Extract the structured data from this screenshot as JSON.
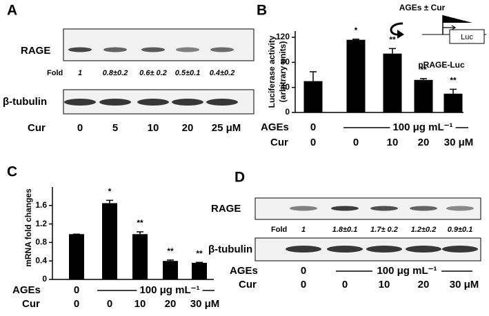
{
  "blots": [
    {
      "panel": "A",
      "row1": "RAGE",
      "fold_label": "Fold",
      "folds": [
        "1",
        "0.8±0.2",
        "0.6± 0.2",
        "0.5±0.1",
        "0.4±0.2"
      ],
      "row2": "β-tubulin",
      "lane_label": "Cur",
      "lanes": [
        "0",
        "5",
        "10",
        "20",
        "25 μM"
      ]
    },
    {
      "panel": "D",
      "row1": "RAGE",
      "fold_label": "Fold",
      "folds": [
        "1",
        "1.8±0.1",
        "1.7± 0.2",
        "1.2±0.2",
        "0.9±0.1"
      ],
      "row2": "β-tubulin",
      "treat_label": "AGEs",
      "treat_first": "0",
      "treat_span": "100 μg mL⁻¹",
      "lane_label": "Cur",
      "lanes": [
        "0",
        "0",
        "10",
        "20",
        "30 μM"
      ]
    }
  ],
  "chart_data": [
    {
      "type": "bar",
      "panel": "B",
      "y_label": [
        "Luciferase activity",
        "(arbitrary units)"
      ],
      "categories": [
        "0",
        "0",
        "10",
        "20",
        "30 μM"
      ],
      "category_label": "Cur",
      "values": [
        50,
        116,
        94,
        52,
        30
      ],
      "errors": [
        15,
        1,
        8,
        2,
        7
      ],
      "significance": [
        null,
        "*",
        "**",
        "**",
        "**"
      ],
      "color": "#000000",
      "ylim": [
        0,
        130
      ],
      "yticks": [
        0,
        40,
        80,
        120
      ],
      "treatment": {
        "label": "AGEs",
        "first": "0",
        "span": "100 μg mL⁻¹"
      },
      "inset": {
        "top": "AGEs ± Cur",
        "box": "Luc",
        "bottom": "pRAGE-Luc"
      }
    },
    {
      "type": "bar",
      "panel": "C",
      "y_label": [
        "mRNA  fold changes"
      ],
      "categories": [
        "0",
        "0",
        "10",
        "20",
        "30 μM"
      ],
      "category_label": "Cur",
      "values": [
        0.98,
        1.65,
        0.98,
        0.4,
        0.36
      ],
      "errors": [
        0,
        0.06,
        0.05,
        0.02,
        0.01
      ],
      "significance": [
        null,
        "*",
        "**",
        "**",
        "**"
      ],
      "color": "#000000",
      "ylim": [
        0,
        2
      ],
      "yticks": [
        0,
        0.4,
        0.8,
        1.2,
        1.6
      ],
      "treatment": {
        "label": "AGEs",
        "first": "0",
        "span": "100 μg mL⁻¹"
      }
    }
  ]
}
